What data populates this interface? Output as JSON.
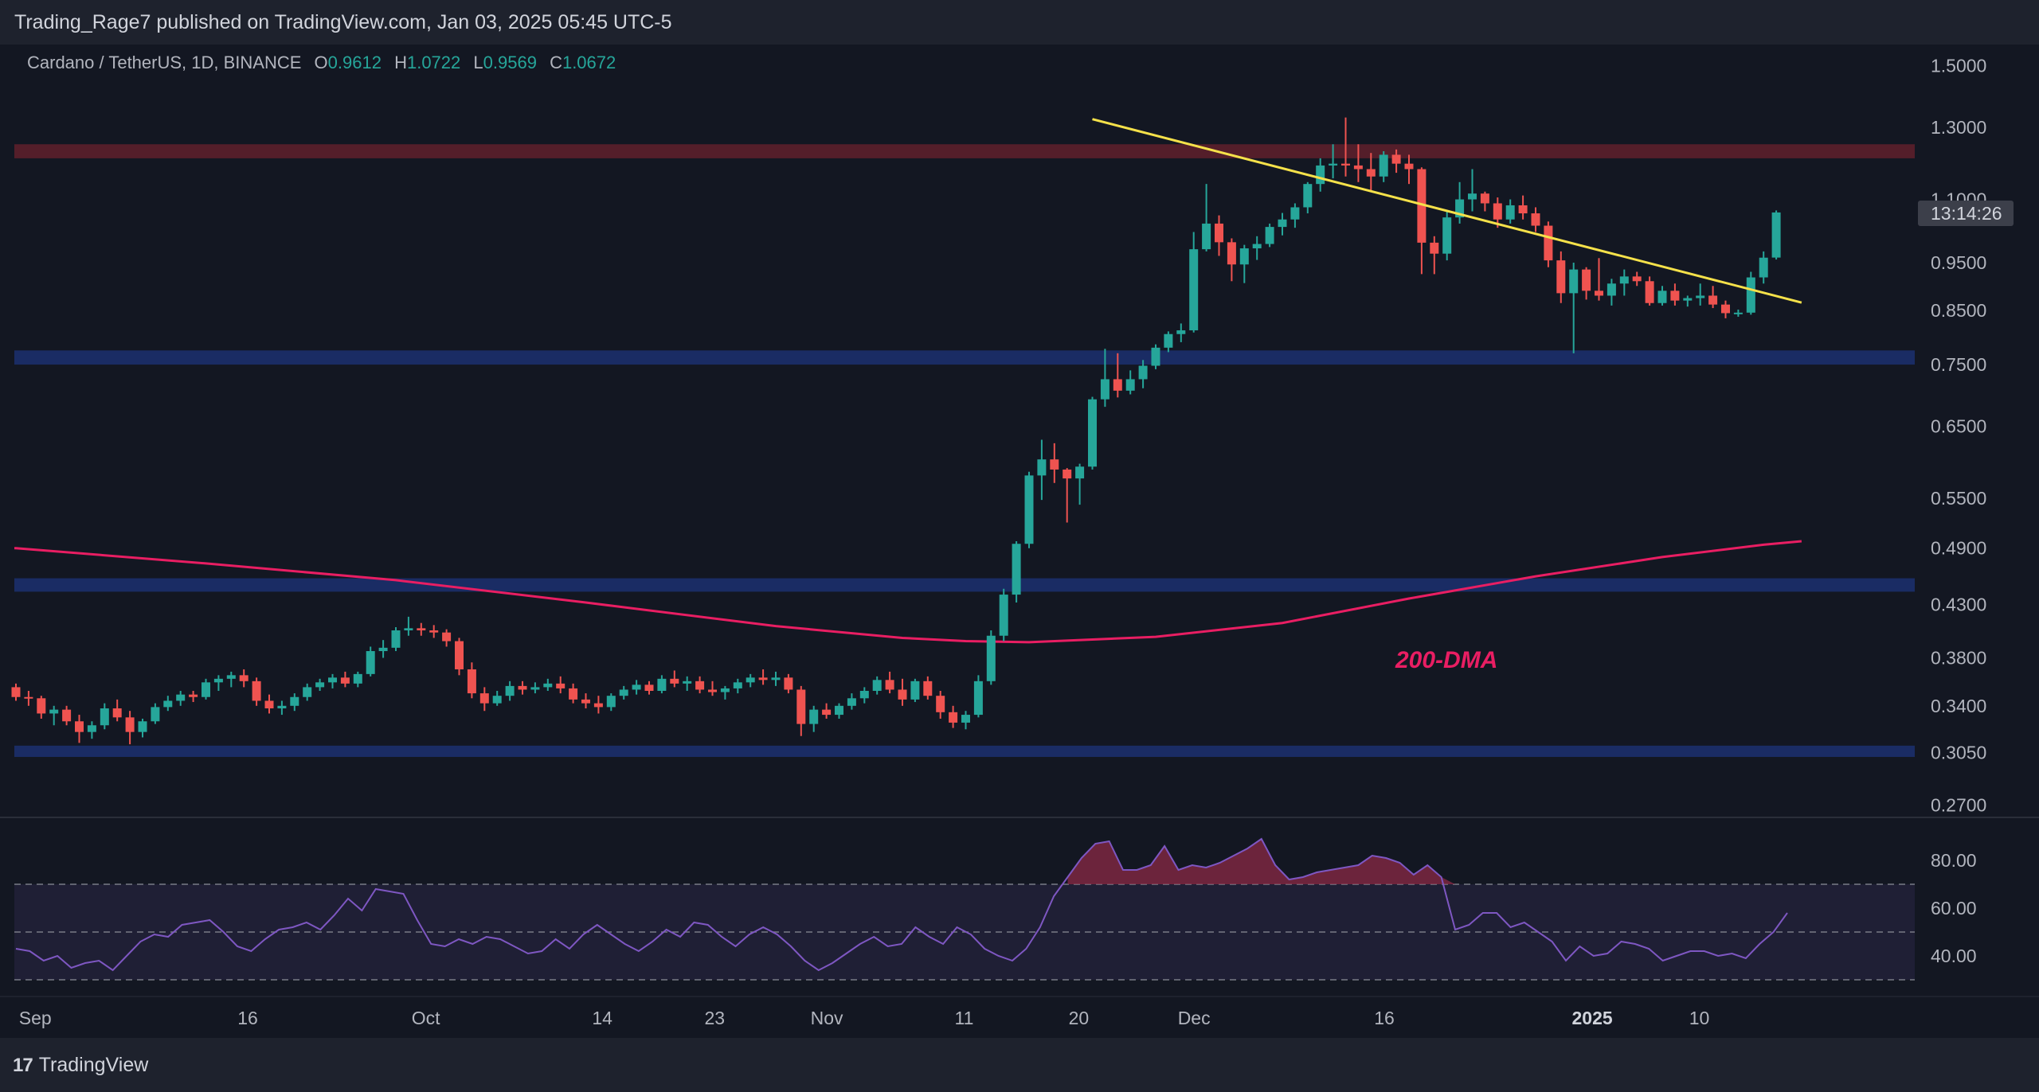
{
  "header": {
    "publisher_line": "Trading_Rage7 published on TradingView.com, Jan 03, 2025 05:45 UTC-5"
  },
  "legend": {
    "symbol": "Cardano / TetherUS, 1D, BINANCE",
    "open_label": "O",
    "open": "0.9612",
    "high_label": "H",
    "high": "1.0722",
    "low_label": "L",
    "low": "0.9569",
    "close_label": "C",
    "close": "1.0672"
  },
  "countdown": "13:14:26",
  "footer": {
    "brand": "TradingView"
  },
  "colors": {
    "up": "#26a69a",
    "down": "#ef5350",
    "dma": "#e91e63",
    "trendline": "#f5e14a",
    "rsi": "#7e57c2",
    "resistance_zone": "#5c1f2b",
    "support_zone": "#1c2f6b"
  },
  "chart_data": [
    {
      "type": "candlestick",
      "title": "Cardano / TetherUS, 1D, BINANCE",
      "x_tick_labels": [
        "Sep",
        "16",
        "Oct",
        "14",
        "23",
        "Nov",
        "11",
        "20",
        "Dec",
        "16",
        "2025",
        "10"
      ],
      "y_tick_labels": [
        "1.5000",
        "1.3000",
        "1.1000",
        "0.9500",
        "0.8500",
        "0.7500",
        "0.6500",
        "0.5500",
        "0.4900",
        "0.4300",
        "0.3800",
        "0.3400",
        "0.3050",
        "0.2700"
      ],
      "y_scale": "log",
      "ylim": [
        0.26,
        1.55
      ],
      "start_date": "2024-08-30",
      "candles_ohlc": [
        [
          0.355,
          0.358,
          0.344,
          0.347
        ],
        [
          0.347,
          0.352,
          0.34,
          0.346
        ],
        [
          0.346,
          0.348,
          0.33,
          0.334
        ],
        [
          0.334,
          0.34,
          0.325,
          0.337
        ],
        [
          0.337,
          0.34,
          0.325,
          0.328
        ],
        [
          0.328,
          0.333,
          0.312,
          0.32
        ],
        [
          0.32,
          0.328,
          0.315,
          0.325
        ],
        [
          0.325,
          0.342,
          0.322,
          0.338
        ],
        [
          0.338,
          0.345,
          0.328,
          0.331
        ],
        [
          0.331,
          0.336,
          0.311,
          0.32
        ],
        [
          0.32,
          0.33,
          0.316,
          0.328
        ],
        [
          0.328,
          0.342,
          0.326,
          0.339
        ],
        [
          0.339,
          0.348,
          0.336,
          0.344
        ],
        [
          0.344,
          0.352,
          0.34,
          0.349
        ],
        [
          0.349,
          0.352,
          0.343,
          0.347
        ],
        [
          0.347,
          0.362,
          0.345,
          0.359
        ],
        [
          0.359,
          0.365,
          0.352,
          0.362
        ],
        [
          0.362,
          0.368,
          0.355,
          0.365
        ],
        [
          0.365,
          0.37,
          0.355,
          0.36
        ],
        [
          0.36,
          0.363,
          0.34,
          0.344
        ],
        [
          0.344,
          0.349,
          0.334,
          0.338
        ],
        [
          0.338,
          0.344,
          0.333,
          0.34
        ],
        [
          0.34,
          0.35,
          0.336,
          0.347
        ],
        [
          0.347,
          0.358,
          0.344,
          0.355
        ],
        [
          0.355,
          0.362,
          0.352,
          0.359
        ],
        [
          0.359,
          0.366,
          0.354,
          0.363
        ],
        [
          0.363,
          0.368,
          0.355,
          0.358
        ],
        [
          0.358,
          0.368,
          0.355,
          0.366
        ],
        [
          0.366,
          0.39,
          0.364,
          0.386
        ],
        [
          0.386,
          0.396,
          0.38,
          0.389
        ],
        [
          0.389,
          0.408,
          0.386,
          0.405
        ],
        [
          0.405,
          0.418,
          0.4,
          0.407
        ],
        [
          0.407,
          0.412,
          0.4,
          0.405
        ],
        [
          0.405,
          0.41,
          0.398,
          0.403
        ],
        [
          0.403,
          0.406,
          0.39,
          0.395
        ],
        [
          0.395,
          0.398,
          0.365,
          0.37
        ],
        [
          0.37,
          0.376,
          0.346,
          0.35
        ],
        [
          0.35,
          0.355,
          0.336,
          0.342
        ],
        [
          0.342,
          0.352,
          0.34,
          0.348
        ],
        [
          0.348,
          0.36,
          0.344,
          0.356
        ],
        [
          0.356,
          0.36,
          0.349,
          0.353
        ],
        [
          0.353,
          0.359,
          0.35,
          0.355
        ],
        [
          0.355,
          0.362,
          0.352,
          0.358
        ],
        [
          0.358,
          0.364,
          0.35,
          0.354
        ],
        [
          0.354,
          0.358,
          0.342,
          0.345
        ],
        [
          0.345,
          0.35,
          0.338,
          0.342
        ],
        [
          0.342,
          0.348,
          0.334,
          0.339
        ],
        [
          0.339,
          0.35,
          0.336,
          0.348
        ],
        [
          0.348,
          0.356,
          0.345,
          0.353
        ],
        [
          0.353,
          0.361,
          0.349,
          0.357
        ],
        [
          0.357,
          0.36,
          0.349,
          0.352
        ],
        [
          0.352,
          0.365,
          0.35,
          0.362
        ],
        [
          0.362,
          0.369,
          0.355,
          0.358
        ],
        [
          0.358,
          0.364,
          0.352,
          0.36
        ],
        [
          0.36,
          0.364,
          0.35,
          0.353
        ],
        [
          0.353,
          0.36,
          0.348,
          0.351
        ],
        [
          0.351,
          0.356,
          0.345,
          0.354
        ],
        [
          0.354,
          0.362,
          0.35,
          0.359
        ],
        [
          0.359,
          0.366,
          0.355,
          0.363
        ],
        [
          0.363,
          0.37,
          0.357,
          0.361
        ],
        [
          0.361,
          0.368,
          0.356,
          0.363
        ],
        [
          0.363,
          0.366,
          0.35,
          0.353
        ],
        [
          0.353,
          0.356,
          0.317,
          0.326
        ],
        [
          0.326,
          0.34,
          0.32,
          0.337
        ],
        [
          0.337,
          0.342,
          0.33,
          0.333
        ],
        [
          0.333,
          0.342,
          0.33,
          0.34
        ],
        [
          0.34,
          0.35,
          0.337,
          0.346
        ],
        [
          0.346,
          0.355,
          0.342,
          0.352
        ],
        [
          0.352,
          0.364,
          0.349,
          0.361
        ],
        [
          0.361,
          0.368,
          0.35,
          0.353
        ],
        [
          0.353,
          0.362,
          0.34,
          0.345
        ],
        [
          0.345,
          0.362,
          0.343,
          0.36
        ],
        [
          0.36,
          0.364,
          0.345,
          0.348
        ],
        [
          0.348,
          0.352,
          0.33,
          0.335
        ],
        [
          0.335,
          0.34,
          0.323,
          0.327
        ],
        [
          0.327,
          0.336,
          0.322,
          0.333
        ],
        [
          0.333,
          0.365,
          0.331,
          0.36
        ],
        [
          0.36,
          0.405,
          0.357,
          0.4
        ],
        [
          0.4,
          0.446,
          0.395,
          0.44
        ],
        [
          0.44,
          0.498,
          0.432,
          0.495
        ],
        [
          0.495,
          0.585,
          0.49,
          0.58
        ],
        [
          0.58,
          0.63,
          0.548,
          0.602
        ],
        [
          0.602,
          0.625,
          0.57,
          0.588
        ],
        [
          0.588,
          0.59,
          0.52,
          0.576
        ],
        [
          0.576,
          0.596,
          0.542,
          0.592
        ],
        [
          0.592,
          0.696,
          0.588,
          0.692
        ],
        [
          0.692,
          0.778,
          0.68,
          0.725
        ],
        [
          0.725,
          0.77,
          0.695,
          0.706
        ],
        [
          0.706,
          0.74,
          0.7,
          0.725
        ],
        [
          0.725,
          0.758,
          0.71,
          0.748
        ],
        [
          0.748,
          0.786,
          0.742,
          0.78
        ],
        [
          0.78,
          0.81,
          0.772,
          0.805
        ],
        [
          0.805,
          0.825,
          0.79,
          0.812
        ],
        [
          0.812,
          1.02,
          0.808,
          0.98
        ],
        [
          0.98,
          1.14,
          0.975,
          1.04
        ],
        [
          1.04,
          1.06,
          0.965,
          0.996
        ],
        [
          0.996,
          1.005,
          0.91,
          0.946
        ],
        [
          0.946,
          0.99,
          0.906,
          0.982
        ],
        [
          0.982,
          1.01,
          0.956,
          0.992
        ],
        [
          0.992,
          1.04,
          0.985,
          1.032
        ],
        [
          1.032,
          1.066,
          1.012,
          1.05
        ],
        [
          1.05,
          1.09,
          1.03,
          1.08
        ],
        [
          1.08,
          1.145,
          1.065,
          1.14
        ],
        [
          1.14,
          1.21,
          1.12,
          1.19
        ],
        [
          1.19,
          1.25,
          1.155,
          1.195
        ],
        [
          1.195,
          1.33,
          1.16,
          1.19
        ],
        [
          1.19,
          1.25,
          1.145,
          1.18
        ],
        [
          1.18,
          1.225,
          1.12,
          1.16
        ],
        [
          1.16,
          1.23,
          1.145,
          1.22
        ],
        [
          1.22,
          1.235,
          1.17,
          1.195
        ],
        [
          1.195,
          1.22,
          1.14,
          1.18
        ],
        [
          1.18,
          1.185,
          0.925,
          0.995
        ],
        [
          0.995,
          1.01,
          0.925,
          0.97
        ],
        [
          0.97,
          1.07,
          0.955,
          1.055
        ],
        [
          1.055,
          1.145,
          1.04,
          1.1
        ],
        [
          1.1,
          1.18,
          1.07,
          1.115
        ],
        [
          1.115,
          1.12,
          1.07,
          1.09
        ],
        [
          1.09,
          1.105,
          1.03,
          1.05
        ],
        [
          1.05,
          1.1,
          1.04,
          1.085
        ],
        [
          1.085,
          1.11,
          1.05,
          1.065
        ],
        [
          1.065,
          1.08,
          1.02,
          1.035
        ],
        [
          1.035,
          1.045,
          0.94,
          0.955
        ],
        [
          0.955,
          0.975,
          0.865,
          0.885
        ],
        [
          0.885,
          0.95,
          0.77,
          0.935
        ],
        [
          0.935,
          0.94,
          0.872,
          0.89
        ],
        [
          0.89,
          0.96,
          0.87,
          0.88
        ],
        [
          0.88,
          0.915,
          0.86,
          0.905
        ],
        [
          0.905,
          0.935,
          0.88,
          0.92
        ],
        [
          0.92,
          0.93,
          0.9,
          0.91
        ],
        [
          0.91,
          0.92,
          0.86,
          0.865
        ],
        [
          0.865,
          0.9,
          0.86,
          0.89
        ],
        [
          0.89,
          0.905,
          0.86,
          0.87
        ],
        [
          0.87,
          0.88,
          0.858,
          0.875
        ],
        [
          0.875,
          0.905,
          0.86,
          0.88
        ],
        [
          0.88,
          0.9,
          0.855,
          0.862
        ],
        [
          0.862,
          0.87,
          0.835,
          0.845
        ],
        [
          0.845,
          0.852,
          0.838,
          0.846
        ],
        [
          0.846,
          0.93,
          0.842,
          0.918
        ],
        [
          0.918,
          0.975,
          0.905,
          0.961
        ],
        [
          0.9612,
          1.0722,
          0.9569,
          1.0672
        ]
      ],
      "dma200": {
        "name": "200-DMA",
        "points": [
          [
            0,
            0.49
          ],
          [
            15,
            0.473
          ],
          [
            30,
            0.455
          ],
          [
            45,
            0.432
          ],
          [
            60,
            0.409
          ],
          [
            70,
            0.398
          ],
          [
            75,
            0.395
          ],
          [
            80,
            0.394
          ],
          [
            90,
            0.399
          ],
          [
            100,
            0.412
          ],
          [
            110,
            0.436
          ],
          [
            120,
            0.459
          ],
          [
            130,
            0.48
          ],
          [
            138,
            0.494
          ],
          [
            141,
            0.498
          ]
        ]
      },
      "trendline": {
        "from": [
          85,
          1.325
        ],
        "to": [
          141,
          0.866
        ]
      },
      "zones": [
        {
          "kind": "resistance",
          "from": 1.21,
          "to": 1.25
        },
        {
          "kind": "support",
          "from": 0.75,
          "to": 0.775
        },
        {
          "kind": "support",
          "from": 0.443,
          "to": 0.457
        },
        {
          "kind": "support",
          "from": 0.302,
          "to": 0.31
        }
      ]
    },
    {
      "type": "line",
      "title": "",
      "y_tick_labels": [
        "80.00",
        "60.00",
        "40.00"
      ],
      "ylim": [
        20,
        100
      ],
      "band": [
        30,
        70
      ],
      "midline": 50,
      "series": [
        {
          "values": [
            43,
            42,
            38,
            40,
            35,
            37,
            38,
            34,
            40,
            46,
            49,
            48,
            53,
            54,
            55,
            50,
            44,
            42,
            47,
            51,
            52,
            54,
            51,
            57,
            64,
            59,
            68,
            67,
            66,
            55,
            45,
            44,
            47,
            45,
            48,
            47,
            44,
            41,
            42,
            47,
            43,
            49,
            53,
            49,
            45,
            42,
            46,
            51,
            48,
            54,
            53,
            48,
            44,
            49,
            52,
            49,
            44,
            38,
            34,
            37,
            41,
            45,
            48,
            44,
            45,
            52,
            48,
            45,
            52,
            49,
            43,
            40,
            38,
            43,
            52,
            65,
            73,
            81,
            87,
            88,
            76,
            76,
            78,
            86,
            76,
            78,
            77,
            79,
            82,
            85,
            89,
            78,
            72,
            73,
            75,
            76,
            77,
            78,
            82,
            81,
            79,
            74,
            78,
            73,
            51,
            53,
            58,
            58,
            52,
            54,
            50,
            46,
            38,
            44,
            40,
            41,
            46,
            45,
            43,
            38,
            40,
            42,
            42,
            40,
            41,
            39,
            45,
            50,
            58
          ]
        }
      ]
    }
  ]
}
